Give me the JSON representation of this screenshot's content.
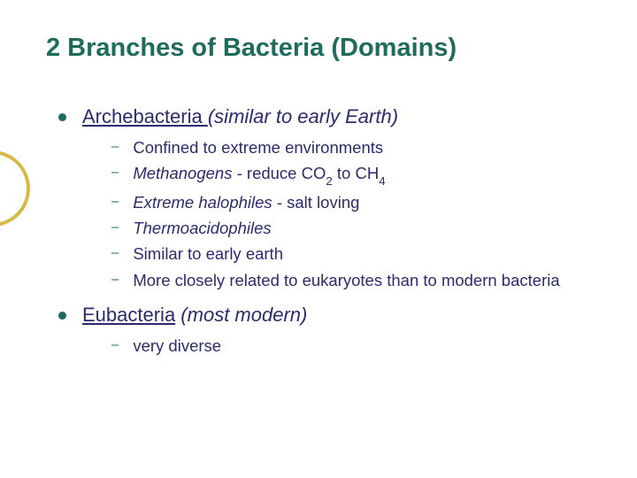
{
  "title": "2 Branches of Bacteria (Domains)",
  "colors": {
    "heading": "#1f6b5e",
    "body": "#2b2b6f",
    "accent": "#d9b84a",
    "bg": "#ffffff"
  },
  "section1": {
    "head_u": "Archebacteria ",
    "head_i": "(similar to early Earth)",
    "items": {
      "a": "Confined to extreme environments",
      "b_i": "Methanogens",
      "b_rest": " - reduce CO",
      "b_sub1": "2",
      "b_mid": " to CH",
      "b_sub2": "4",
      "c_i": "Extreme halophiles",
      "c_rest": " - salt loving",
      "d_i": "Thermoacidophiles",
      "e": "Similar to early earth",
      "f": "More closely related to eukaryotes than to modern bacteria"
    }
  },
  "section2": {
    "head_u": "Eubacteria",
    "head_i": " (most modern)",
    "items": {
      "a": "very diverse"
    }
  }
}
